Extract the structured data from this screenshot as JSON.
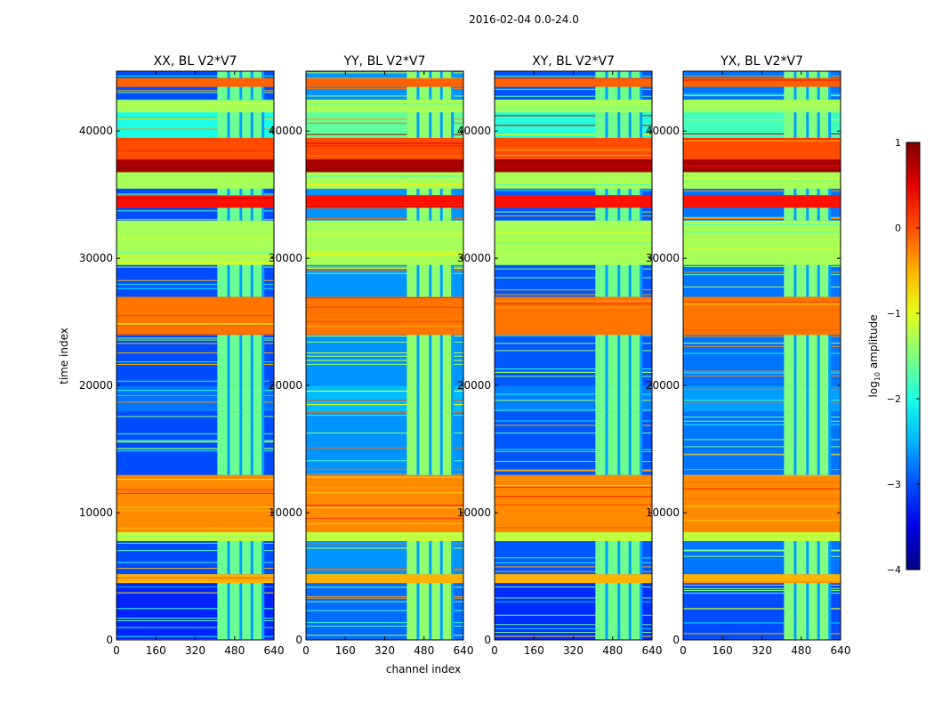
{
  "chart_data": {
    "type": "heatmap",
    "title": "2016-02-04 0.0-24.0",
    "xlabel": "channel index",
    "ylabel": "time index",
    "xlim": [
      0,
      640
    ],
    "ylim": [
      0,
      44700
    ],
    "xticks": [
      "0",
      "160",
      "320",
      "480",
      "640"
    ],
    "xtick_values": [
      0,
      160,
      320,
      480,
      640
    ],
    "yticks": [
      "0",
      "10000",
      "20000",
      "30000",
      "40000"
    ],
    "ytick_values": [
      0,
      10000,
      20000,
      30000,
      40000
    ],
    "colorbar": {
      "label": "log10 amplitude",
      "label_main": "log",
      "label_sub": "10",
      "label_rest": " amplitude",
      "range": [
        -4,
        1
      ],
      "ticks": [
        "1",
        "0",
        "−1",
        "−2",
        "−3",
        "−4"
      ],
      "tick_values": [
        1,
        0,
        -1,
        -2,
        -3,
        -4
      ],
      "colormap": "jet"
    },
    "panels": [
      {
        "title": "XX, BL V2*V7",
        "offset": 0.0
      },
      {
        "title": "YY, BL V2*V7",
        "offset": 0.35
      },
      {
        "title": "XY, BL V2*V7",
        "offset": 0.05
      },
      {
        "title": "YX, BL V2*V7",
        "offset": 0.2
      }
    ],
    "rfi_channels": [
      410,
      600
    ],
    "bands": [
      [
        0,
        4500,
        -3.2
      ],
      [
        4500,
        5200,
        -0.5
      ],
      [
        5200,
        7800,
        -3.0
      ],
      [
        7800,
        8500,
        -1.2
      ],
      [
        8500,
        13000,
        -0.3
      ],
      [
        13000,
        18000,
        -3.0
      ],
      [
        18000,
        20000,
        -2.8
      ],
      [
        20000,
        24000,
        -3.0
      ],
      [
        24000,
        27000,
        -0.2
      ],
      [
        27000,
        29500,
        -3.0
      ],
      [
        29500,
        33000,
        -1.3
      ],
      [
        33000,
        34000,
        -3.0
      ],
      [
        34000,
        35000,
        0.3
      ],
      [
        35000,
        35500,
        -3.0
      ],
      [
        35500,
        36800,
        -1.3
      ],
      [
        36800,
        37800,
        0.8
      ],
      [
        37800,
        39500,
        0.0
      ],
      [
        39500,
        41500,
        -2.0
      ],
      [
        41500,
        42500,
        -1.3
      ],
      [
        42500,
        43500,
        -3.0
      ],
      [
        43500,
        44200,
        -0.1
      ],
      [
        44200,
        44700,
        -3.0
      ]
    ]
  }
}
